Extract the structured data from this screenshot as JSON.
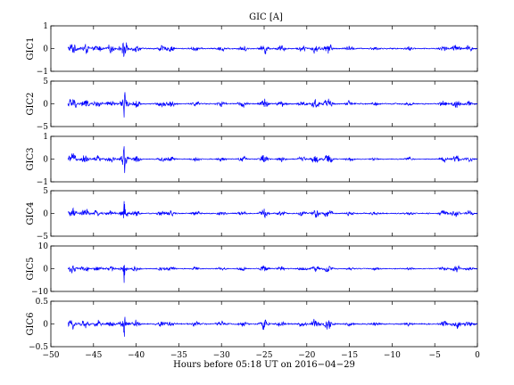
{
  "chart_data": {
    "type": "line",
    "title": "GIC [A]",
    "xlabel": "Hours before  05:18 UT on 2016−04−29",
    "xlim": [
      -50,
      0
    ],
    "xticks": [
      "−50",
      "−45",
      "−40",
      "−35",
      "−30",
      "−25",
      "−20",
      "−15",
      "−10",
      "−5",
      "0"
    ],
    "line_color": "#0000ff",
    "grid": false,
    "x_start": -48.0,
    "x_end": 0.0,
    "activity_bursts": [
      {
        "hour": -47.5,
        "strength": 0.9
      },
      {
        "hour": -46.0,
        "strength": 0.75
      },
      {
        "hour": -44.5,
        "strength": 0.6
      },
      {
        "hour": -43.0,
        "strength": 0.55
      },
      {
        "hour": -41.4,
        "strength": 1.0
      },
      {
        "hour": -40.0,
        "strength": 0.55
      },
      {
        "hour": -37.0,
        "strength": 0.45
      },
      {
        "hour": -36.0,
        "strength": 0.5
      },
      {
        "hour": -33.0,
        "strength": 0.35
      },
      {
        "hour": -30.0,
        "strength": 0.35
      },
      {
        "hour": -27.5,
        "strength": 0.4
      },
      {
        "hour": -25.0,
        "strength": 0.8
      },
      {
        "hour": -23.0,
        "strength": 0.45
      },
      {
        "hour": -20.5,
        "strength": 0.4
      },
      {
        "hour": -19.0,
        "strength": 0.7
      },
      {
        "hour": -17.5,
        "strength": 0.85
      },
      {
        "hour": -15.0,
        "strength": 0.35
      },
      {
        "hour": -12.0,
        "strength": 0.25
      },
      {
        "hour": -8.0,
        "strength": 0.25
      },
      {
        "hour": -4.0,
        "strength": 0.45
      },
      {
        "hour": -2.5,
        "strength": 0.7
      },
      {
        "hour": -1.0,
        "strength": 0.4
      }
    ],
    "panels": [
      {
        "name": "GIC1",
        "ylim": [
          -1,
          1
        ],
        "yticks": [
          "1",
          "0",
          "−1"
        ],
        "peak": 0.45,
        "base_noise": 0.04,
        "spike": {
          "hour": -41.4,
          "amp": 0.5
        }
      },
      {
        "name": "GIC2",
        "ylim": [
          -5,
          5
        ],
        "yticks": [
          "5",
          "0",
          "−5"
        ],
        "peak": 2.3,
        "base_noise": 0.2,
        "spike": {
          "hour": -41.4,
          "amp": 3.2
        }
      },
      {
        "name": "GIC3",
        "ylim": [
          -1,
          1
        ],
        "yticks": [
          "1",
          "0",
          "−1"
        ],
        "peak": 0.42,
        "base_noise": 0.03,
        "spike": {
          "hour": -41.4,
          "amp": 0.75
        }
      },
      {
        "name": "GIC4",
        "ylim": [
          -5,
          5
        ],
        "yticks": [
          "5",
          "0",
          "−5"
        ],
        "peak": 2.0,
        "base_noise": 0.18,
        "spike": {
          "hour": -41.4,
          "amp": 3.0
        }
      },
      {
        "name": "GIC5",
        "ylim": [
          -10,
          10
        ],
        "yticks": [
          "10",
          "0",
          "−10"
        ],
        "peak": 3.2,
        "base_noise": 0.3,
        "spike": {
          "hour": -41.4,
          "amp": 6.5
        }
      },
      {
        "name": "GIC6",
        "ylim": [
          -0.5,
          0.5
        ],
        "yticks": [
          "0.5",
          "0",
          "−0.5"
        ],
        "peak": 0.22,
        "base_noise": 0.02,
        "spike": {
          "hour": -41.4,
          "amp": 0.28
        }
      }
    ]
  }
}
